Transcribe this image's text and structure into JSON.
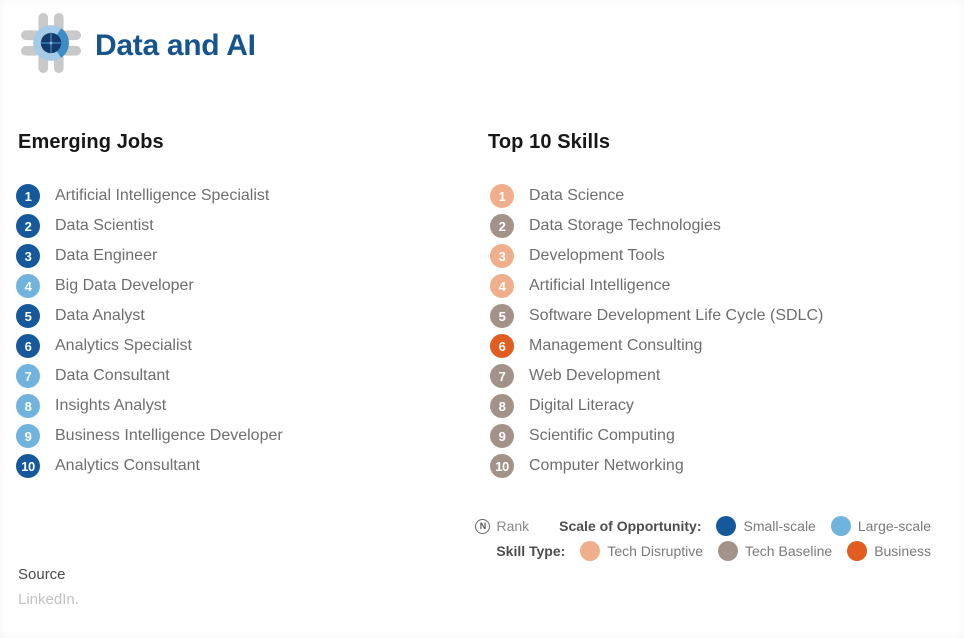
{
  "header": {
    "title": "Data and AI"
  },
  "colors": {
    "small_scale": "#16599B",
    "large_scale": "#70B3DC",
    "tech_disruptive": "#EFAE8C",
    "tech_baseline": "#A3928A",
    "business": "#E15C20",
    "title_blue": "#17538C"
  },
  "emerging_jobs": {
    "heading": "Emerging Jobs",
    "items": [
      {
        "rank": "1",
        "label": "Artificial Intelligence Specialist",
        "type": "small_scale"
      },
      {
        "rank": "2",
        "label": "Data Scientist",
        "type": "small_scale"
      },
      {
        "rank": "3",
        "label": "Data Engineer",
        "type": "small_scale"
      },
      {
        "rank": "4",
        "label": "Big Data Developer",
        "type": "large_scale"
      },
      {
        "rank": "5",
        "label": "Data Analyst",
        "type": "small_scale"
      },
      {
        "rank": "6",
        "label": "Analytics Specialist",
        "type": "small_scale"
      },
      {
        "rank": "7",
        "label": "Data Consultant",
        "type": "large_scale"
      },
      {
        "rank": "8",
        "label": "Insights Analyst",
        "type": "large_scale"
      },
      {
        "rank": "9",
        "label": "Business Intelligence Developer",
        "type": "large_scale"
      },
      {
        "rank": "10",
        "label": "Analytics Consultant",
        "type": "small_scale"
      }
    ]
  },
  "top_skills": {
    "heading": "Top 10 Skills",
    "items": [
      {
        "rank": "1",
        "label": "Data Science",
        "type": "tech_disruptive"
      },
      {
        "rank": "2",
        "label": "Data Storage Technologies",
        "type": "tech_baseline"
      },
      {
        "rank": "3",
        "label": "Development Tools",
        "type": "tech_disruptive"
      },
      {
        "rank": "4",
        "label": "Artificial Intelligence",
        "type": "tech_disruptive"
      },
      {
        "rank": "5",
        "label": "Software Development Life Cycle (SDLC)",
        "type": "tech_baseline"
      },
      {
        "rank": "6",
        "label": "Management Consulting",
        "type": "business"
      },
      {
        "rank": "7",
        "label": "Web Development",
        "type": "tech_baseline"
      },
      {
        "rank": "8",
        "label": "Digital Literacy",
        "type": "tech_baseline"
      },
      {
        "rank": "9",
        "label": "Scientific Computing",
        "type": "tech_baseline"
      },
      {
        "rank": "10",
        "label": "Computer Networking",
        "type": "tech_baseline"
      }
    ]
  },
  "legend": {
    "rank_symbol": "N",
    "rank_label": "Rank",
    "scale_label": "Scale of Opportunity:",
    "scale_items": [
      {
        "label": "Small-scale",
        "color_key": "small_scale"
      },
      {
        "label": "Large-scale",
        "color_key": "large_scale"
      }
    ],
    "skill_label": "Skill Type:",
    "skill_items": [
      {
        "label": "Tech Disruptive",
        "color_key": "tech_disruptive"
      },
      {
        "label": "Tech Baseline",
        "color_key": "tech_baseline"
      },
      {
        "label": "Business",
        "color_key": "business"
      }
    ]
  },
  "source": {
    "label": "Source",
    "value": "LinkedIn."
  },
  "chart_data": [
    {
      "type": "table",
      "title": "Emerging Jobs",
      "columns": [
        "rank",
        "job",
        "scale_of_opportunity"
      ],
      "rows": [
        [
          1,
          "Artificial Intelligence Specialist",
          "Small-scale"
        ],
        [
          2,
          "Data Scientist",
          "Small-scale"
        ],
        [
          3,
          "Data Engineer",
          "Small-scale"
        ],
        [
          4,
          "Big Data Developer",
          "Large-scale"
        ],
        [
          5,
          "Data Analyst",
          "Small-scale"
        ],
        [
          6,
          "Analytics Specialist",
          "Small-scale"
        ],
        [
          7,
          "Data Consultant",
          "Large-scale"
        ],
        [
          8,
          "Insights Analyst",
          "Large-scale"
        ],
        [
          9,
          "Business Intelligence Developer",
          "Large-scale"
        ],
        [
          10,
          "Analytics Consultant",
          "Small-scale"
        ]
      ]
    },
    {
      "type": "table",
      "title": "Top 10 Skills",
      "columns": [
        "rank",
        "skill",
        "skill_type"
      ],
      "rows": [
        [
          1,
          "Data Science",
          "Tech Disruptive"
        ],
        [
          2,
          "Data Storage Technologies",
          "Tech Baseline"
        ],
        [
          3,
          "Development Tools",
          "Tech Disruptive"
        ],
        [
          4,
          "Artificial Intelligence",
          "Tech Disruptive"
        ],
        [
          5,
          "Software Development Life Cycle (SDLC)",
          "Tech Baseline"
        ],
        [
          6,
          "Management Consulting",
          "Business"
        ],
        [
          7,
          "Web Development",
          "Tech Baseline"
        ],
        [
          8,
          "Digital Literacy",
          "Tech Baseline"
        ],
        [
          9,
          "Scientific Computing",
          "Tech Baseline"
        ],
        [
          10,
          "Computer Networking",
          "Tech Baseline"
        ]
      ]
    }
  ]
}
